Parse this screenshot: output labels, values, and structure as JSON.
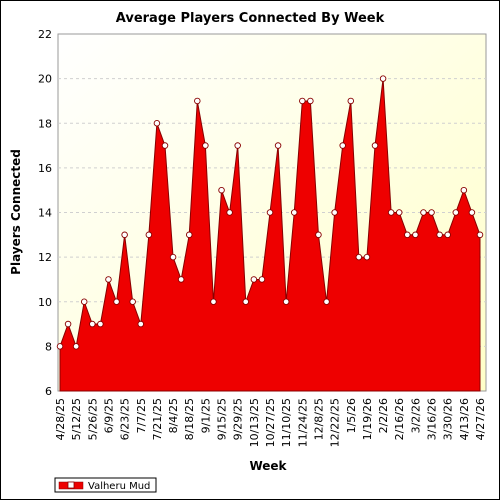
{
  "chart_data": {
    "type": "area",
    "title": "Average Players Connected By Week",
    "xlabel": "Week",
    "ylabel": "Players Connected",
    "ylim": [
      6,
      22
    ],
    "yticks": [
      6,
      8,
      10,
      12,
      14,
      16,
      18,
      20,
      22
    ],
    "x_tick_labels": [
      "4/28/25",
      "5/12/25",
      "5/26/25",
      "6/9/25",
      "6/23/25",
      "7/7/25",
      "7/21/25",
      "8/4/25",
      "8/18/25",
      "9/1/25",
      "9/15/25",
      "9/29/25",
      "10/13/25",
      "10/27/25",
      "11/10/25",
      "11/24/25",
      "12/8/25",
      "12/22/25",
      "1/5/26",
      "1/19/26",
      "2/2/26",
      "2/16/26",
      "3/2/26",
      "3/16/26",
      "3/30/26",
      "4/13/26",
      "4/27/26"
    ],
    "legend": "bottom-left",
    "grid": true,
    "series": [
      {
        "name": "Valheru Mud",
        "color": "#ee0000",
        "values": [
          8,
          9,
          8,
          10,
          9,
          9,
          11,
          10,
          13,
          10,
          9,
          13,
          18,
          17,
          12,
          11,
          13,
          19,
          17,
          10,
          15,
          14,
          17,
          10,
          11,
          11,
          14,
          17,
          10,
          14,
          19,
          19,
          13,
          10,
          14,
          17,
          19,
          12,
          12,
          17,
          20,
          14,
          14,
          13,
          13,
          14,
          14,
          13,
          13,
          14,
          15,
          14,
          13
        ]
      }
    ]
  }
}
